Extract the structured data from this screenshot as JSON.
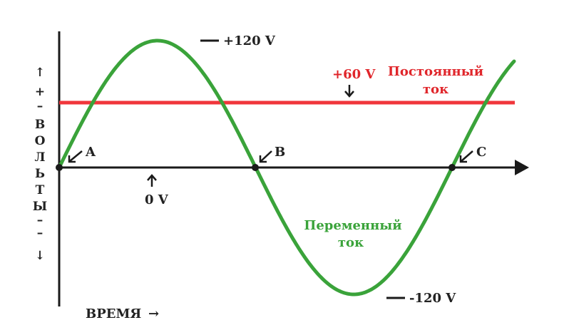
{
  "colors": {
    "ac_wave": "#3aa33a",
    "dc_line": "#f0363b",
    "axis": "#1a1a1a",
    "text": "#222222",
    "dc_text": "#e0262b",
    "ac_text": "#3aa33a"
  },
  "labels": {
    "peak_pos": "+120 V",
    "peak_neg": "-120 V",
    "zero": "0 V",
    "dc_value": "+60 V",
    "dc_name_1": "Постоянный",
    "dc_name_2": "ток",
    "ac_name_1": "Переменный",
    "ac_name_2": "ток",
    "point_a": "A",
    "point_b": "B",
    "point_c": "C",
    "time_axis": "ВРЕМЯ",
    "time_arrow": "→"
  },
  "y_axis": {
    "up_arrow": "↑",
    "plus": "+",
    "dash_top": "–",
    "letters": [
      "В",
      "О",
      "Л",
      "Ь",
      "Т",
      "Ы"
    ],
    "dash_bottom": "–",
    "minus": "–",
    "down_arrow": "↓"
  },
  "chart_data": {
    "type": "line",
    "series": [
      {
        "name": "Переменный ток",
        "function": "120*sin(t)",
        "amplitude": 120,
        "periods_shown": 1.25
      },
      {
        "name": "Постоянный ток",
        "constant": 60
      }
    ],
    "ylim": [
      -120,
      120
    ],
    "zero_crossings": [
      "A",
      "B",
      "C"
    ],
    "xlabel": "ВРЕМЯ",
    "ylabel": "ВОЛЬТЫ"
  }
}
